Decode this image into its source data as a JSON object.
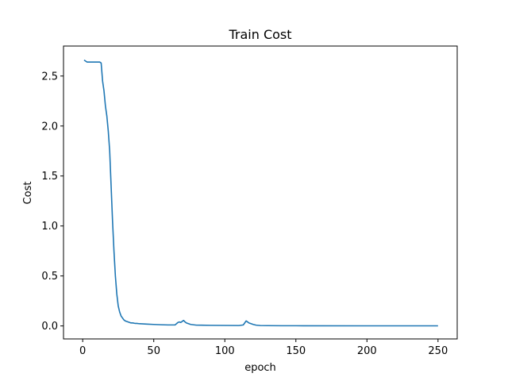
{
  "chart_data": {
    "type": "line",
    "title": "Train Cost",
    "xlabel": "epoch",
    "ylabel": "Cost",
    "xlim": [
      -13.5,
      263.5
    ],
    "ylim": [
      -0.13,
      2.8
    ],
    "xticks": [
      0,
      50,
      100,
      150,
      200,
      250
    ],
    "yticks": [
      0.0,
      0.5,
      1.0,
      1.5,
      2.0,
      2.5
    ],
    "ytick_labels": [
      "0.0",
      "0.5",
      "1.0",
      "1.5",
      "2.0",
      "2.5"
    ],
    "xtick_labels": [
      "0",
      "50",
      "100",
      "150",
      "200",
      "250"
    ],
    "grid": false,
    "color": "#1f77b4",
    "series": [
      {
        "x": [
          1,
          2,
          3,
          5,
          8,
          10,
          12,
          13,
          14,
          15,
          16,
          17,
          18,
          19,
          20,
          21,
          22,
          23,
          24,
          25,
          26,
          27,
          28,
          29,
          30,
          31,
          32,
          33,
          34,
          35,
          36,
          37,
          38,
          40,
          45,
          50,
          55,
          60,
          65,
          67,
          68,
          69,
          70,
          71,
          72,
          73,
          74,
          75,
          76,
          80,
          90,
          100,
          110,
          113,
          114,
          115,
          116,
          117,
          118,
          120,
          122,
          125,
          130,
          140,
          150,
          200,
          250
        ],
        "y": [
          2.66,
          2.65,
          2.64,
          2.64,
          2.64,
          2.64,
          2.64,
          2.63,
          2.45,
          2.35,
          2.2,
          2.1,
          1.95,
          1.75,
          1.4,
          1.05,
          0.75,
          0.5,
          0.32,
          0.2,
          0.14,
          0.1,
          0.08,
          0.06,
          0.05,
          0.045,
          0.04,
          0.035,
          0.03,
          0.03,
          0.028,
          0.025,
          0.025,
          0.022,
          0.018,
          0.015,
          0.012,
          0.01,
          0.01,
          0.035,
          0.04,
          0.035,
          0.045,
          0.055,
          0.04,
          0.03,
          0.025,
          0.02,
          0.015,
          0.008,
          0.006,
          0.005,
          0.004,
          0.01,
          0.03,
          0.05,
          0.04,
          0.03,
          0.025,
          0.015,
          0.008,
          0.004,
          0.003,
          0.002,
          0.002,
          0.001,
          0.001
        ]
      }
    ]
  }
}
